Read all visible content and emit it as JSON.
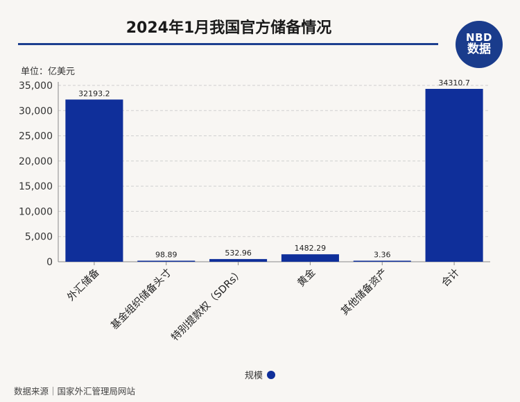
{
  "header": {
    "title": "2024年1月我国官方储备情况",
    "logo_line1": "NBD",
    "logo_line2": "数据"
  },
  "unit_label": "单位：亿美元",
  "legend": {
    "label": "规模",
    "color": "#0f2f9a"
  },
  "source": "数据来源｜国家外汇管理局网站",
  "chart_data": {
    "type": "bar",
    "categories": [
      "外汇储备",
      "基金组织储备头寸",
      "特别提款权（SDRs）",
      "黄金",
      "其他储备资产",
      "合计"
    ],
    "series": [
      {
        "name": "规模",
        "values": [
          32193.2,
          98.89,
          532.96,
          1482.29,
          3.36,
          34310.7
        ],
        "labels": [
          "32193.2",
          "98.89",
          "532.96",
          "1482.29",
          "3.36",
          "34310.7"
        ]
      }
    ],
    "yticks": [
      "0",
      "5,000",
      "10,000",
      "15,000",
      "20,000",
      "25,000",
      "30,000",
      "35,000"
    ],
    "ylim": [
      0,
      35000
    ],
    "grid": true,
    "bar_color": "#0f2f9a",
    "legend_position": "bottom"
  }
}
